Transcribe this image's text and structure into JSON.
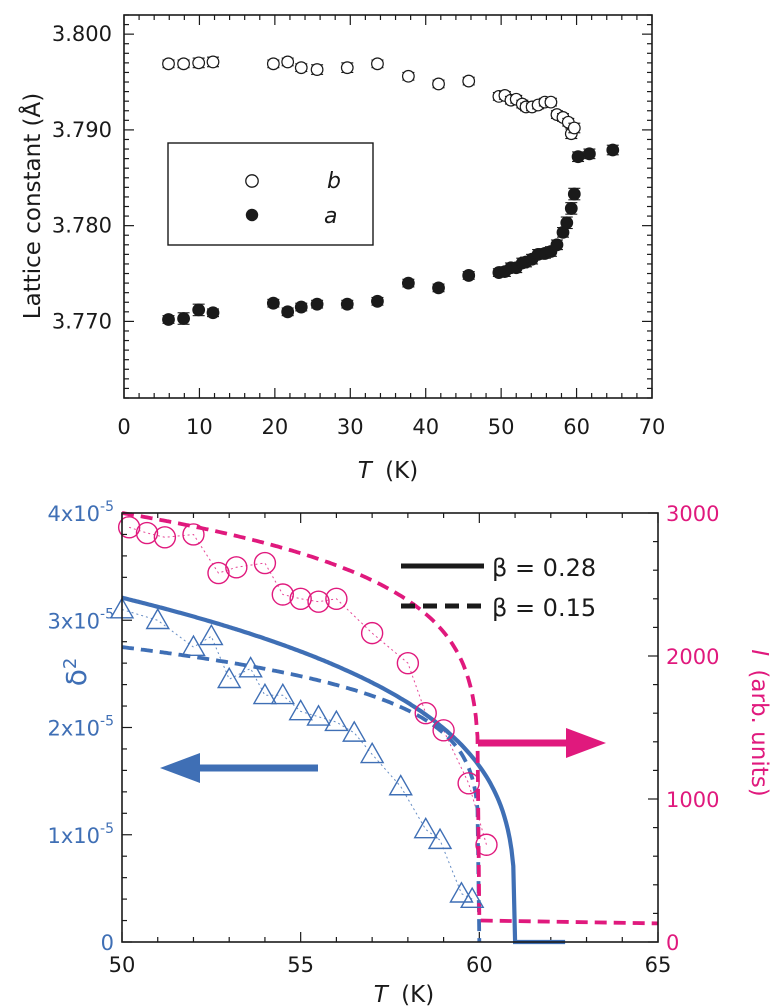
{
  "chart_data": [
    {
      "type": "scatter",
      "xlabel": "T",
      "xlabel_unit": "(K)",
      "ylabel": "Lattice constant (Å)",
      "xlim": [
        0,
        70
      ],
      "ylim": [
        3.762,
        3.802
      ],
      "x_ticks": [
        "0",
        "10",
        "20",
        "30",
        "40",
        "50",
        "60",
        "70"
      ],
      "x_tick_values": [
        0,
        10,
        20,
        30,
        40,
        50,
        60,
        70
      ],
      "y_ticks": [
        "3.770",
        "3.780",
        "3.790",
        "3.800"
      ],
      "y_tick_values": [
        3.77,
        3.78,
        3.79,
        3.8
      ],
      "legend": {
        "b_label": "b",
        "a_label": "a",
        "placement": "center-left"
      },
      "series": [
        {
          "name": "b",
          "marker": "open-circle",
          "x": [
            5.9,
            7.9,
            9.9,
            11.8,
            19.8,
            21.7,
            23.5,
            25.6,
            29.6,
            33.6,
            37.7,
            41.7,
            45.7,
            49.7,
            50.5,
            51.3,
            52.0,
            52.8,
            53.3,
            54.1,
            54.9,
            55.8,
            56.6,
            57.4,
            58.2,
            58.9,
            59.3,
            59.7
          ],
          "y": [
            3.7969,
            3.7969,
            3.797,
            3.7971,
            3.7969,
            3.7971,
            3.7965,
            3.7963,
            3.7965,
            3.7969,
            3.7956,
            3.7948,
            3.7951,
            3.7935,
            3.7936,
            3.7931,
            3.7932,
            3.7927,
            3.7924,
            3.7924,
            3.7926,
            3.7929,
            3.7929,
            3.7916,
            3.7913,
            3.7908,
            3.7896,
            3.7902
          ],
          "err": [
            0.0004,
            0.0004,
            0.0005,
            0.0005,
            0.0004,
            0.0004,
            0.0004,
            0.0005,
            0.0005,
            0.0004,
            0.0004,
            0.0004,
            0.0004,
            0.0004,
            0.0004,
            0.0004,
            0.0004,
            0.0004,
            0.0004,
            0.0004,
            0.0004,
            0.0004,
            0.0004,
            0.0004,
            0.0004,
            0.0004,
            0.0005,
            0.0005
          ]
        },
        {
          "name": "a",
          "marker": "filled-circle",
          "x": [
            5.9,
            7.9,
            9.9,
            11.8,
            19.8,
            21.7,
            23.5,
            25.6,
            29.6,
            33.6,
            37.7,
            41.7,
            45.7,
            49.7,
            50.5,
            51.3,
            52.0,
            52.8,
            53.3,
            54.1,
            54.9,
            55.8,
            56.6,
            57.4,
            58.2,
            58.7,
            59.3,
            59.7,
            60.2,
            61.7,
            64.8
          ],
          "y": [
            3.7702,
            3.7703,
            3.7712,
            3.7709,
            3.7719,
            3.771,
            3.7715,
            3.7718,
            3.7718,
            3.7721,
            3.774,
            3.7735,
            3.7748,
            3.7751,
            3.7752,
            3.7756,
            3.7756,
            3.7761,
            3.7762,
            3.7765,
            3.777,
            3.7771,
            3.7773,
            3.778,
            3.7793,
            3.7803,
            3.7818,
            3.7833,
            3.7872,
            3.7875,
            3.7879
          ],
          "err": [
            0.0004,
            0.0006,
            0.0006,
            0.0004,
            0.0004,
            0.0004,
            0.0004,
            0.0004,
            0.0004,
            0.0004,
            0.0004,
            0.0004,
            0.0004,
            0.0004,
            0.0005,
            0.0005,
            0.0005,
            0.0005,
            0.0005,
            0.0005,
            0.0005,
            0.0005,
            0.0005,
            0.0005,
            0.0005,
            0.0006,
            0.0006,
            0.0006,
            0.0005,
            0.0005,
            0.0005
          ]
        }
      ]
    },
    {
      "type": "scatter",
      "xlabel": "T",
      "xlabel_unit": "(K)",
      "xlim": [
        50,
        65
      ],
      "x_ticks": [
        "50",
        "55",
        "60",
        "65"
      ],
      "x_tick_values": [
        50,
        55,
        60,
        65
      ],
      "y_left": {
        "label": "δ",
        "label_sup": "2",
        "lim": [
          0,
          4e-05
        ],
        "ticks": [
          {
            "value": 0,
            "base": "0",
            "exp": ""
          },
          {
            "value": 1e-05,
            "base": "1x10",
            "exp": "-5"
          },
          {
            "value": 2e-05,
            "base": "2x10",
            "exp": "-5"
          },
          {
            "value": 3e-05,
            "base": "3x10",
            "exp": "-5"
          },
          {
            "value": 4e-05,
            "base": "4x10",
            "exp": "-5"
          }
        ],
        "color": "#3f6fb5"
      },
      "y_right": {
        "label_italic": "I",
        "label_rest": "(arb. units)",
        "lim": [
          0,
          3000
        ],
        "ticks": [
          "0",
          "1000",
          "2000",
          "3000"
        ],
        "tick_values": [
          0,
          1000,
          2000,
          3000
        ],
        "color": "#e0197d"
      },
      "legend": {
        "solid_label": "β = 0.28",
        "dashed_label": "β = 0.15",
        "placement": "top-right"
      },
      "series": [
        {
          "name": "δ² (triangles)",
          "axis": "left",
          "marker": "open-triangle",
          "color": "#3f6fb5",
          "x": [
            50.0,
            51.0,
            52.0,
            52.5,
            53.0,
            53.6,
            54.0,
            54.5,
            55.0,
            55.5,
            56.0,
            56.5,
            57.0,
            57.8,
            58.5,
            58.9,
            59.5,
            59.8
          ],
          "y": [
            3.1e-05,
            3e-05,
            2.75e-05,
            2.85e-05,
            2.45e-05,
            2.55e-05,
            2.3e-05,
            2.3e-05,
            2.15e-05,
            2.1e-05,
            2.05e-05,
            1.95e-05,
            1.75e-05,
            1.45e-05,
            1.05e-05,
            9.5e-06,
            4.5e-06,
            4e-06
          ]
        },
        {
          "name": "I (circles)",
          "axis": "right",
          "marker": "open-circle",
          "color": "#e0197d",
          "x": [
            50.2,
            50.7,
            51.2,
            52.0,
            52.7,
            53.2,
            54.0,
            54.5,
            55.0,
            55.5,
            56.0,
            57.0,
            58.0,
            58.5,
            59.0,
            59.7,
            60.2
          ],
          "y": [
            2900,
            2860,
            2830,
            2850,
            2580,
            2620,
            2650,
            2430,
            2400,
            2380,
            2400,
            2160,
            1950,
            1600,
            1480,
            1110,
            680
          ]
        },
        {
          "name": "fit β = 0.28",
          "axis": "left",
          "style": "solid",
          "color": "#3f6fb5",
          "beta": 0.28,
          "Tc": 61.0,
          "amplitude": 3.21e-05
        },
        {
          "name": "fit β = 0.15",
          "axis": "left",
          "style": "dashed",
          "color": "#3f6fb5",
          "beta": 0.15,
          "Tc": 60.0,
          "amplitude": 2.75e-05
        },
        {
          "name": "fit β = 0.15 (intensity)",
          "axis": "right",
          "style": "dashed",
          "color": "#e0197d",
          "beta": 0.15,
          "Tc": 60.0,
          "amplitude": 3000,
          "background": 150
        }
      ],
      "arrows": [
        {
          "direction": "left",
          "color": "#3f6fb5",
          "points_to": "left axis"
        },
        {
          "direction": "right",
          "color": "#e0197d",
          "points_to": "right axis"
        }
      ]
    }
  ]
}
